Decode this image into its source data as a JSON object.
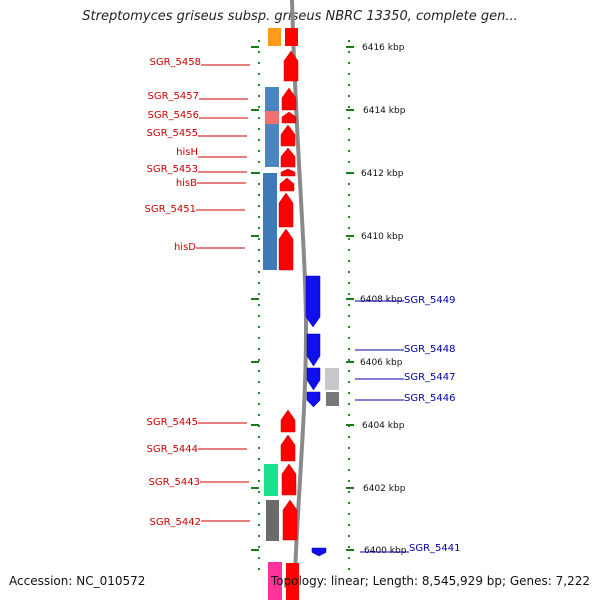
{
  "title": "Streptomyces griseus subsp. griseus NBRC 13350, complete gen...",
  "accession": "Accession: NC_010572",
  "summary": "Topology: linear; Length: 8,545,929 bp; Genes: 7,222",
  "colors": {
    "forward_gene": "#ff0000",
    "reverse_gene": "#1010ee",
    "forward_label": "#cc0000",
    "reverse_label": "#0000aa",
    "backbone": "#8a8a8a",
    "tick": "#008800"
  },
  "kbp_ticks": [
    {
      "label": "6416 kbp"
    },
    {
      "label": "6414 kbp"
    },
    {
      "label": "6412 kbp"
    },
    {
      "label": "6410 kbp"
    },
    {
      "label": "6408 kbp"
    },
    {
      "label": "6406 kbp"
    },
    {
      "label": "6404 kbp"
    },
    {
      "label": "6402 kbp"
    },
    {
      "label": "6400 kbp"
    }
  ],
  "forward_genes": [
    {
      "label": "SGR_5458",
      "color": "#ff0000"
    },
    {
      "label": "SGR_5457",
      "color": "#ff0000"
    },
    {
      "label": "SGR_5456",
      "color": "#ff0000"
    },
    {
      "label": "SGR_5455",
      "color": "#ff0000"
    },
    {
      "label": "hisH",
      "color": "#ff0000"
    },
    {
      "label": "SGR_5453",
      "color": "#ff0000"
    },
    {
      "label": "hisB",
      "color": "#ff0000"
    },
    {
      "label": "SGR_5451",
      "color": "#ff0000"
    },
    {
      "label": "hisD",
      "color": "#ff0000"
    },
    {
      "label": "SGR_5445",
      "color": "#ff0000"
    },
    {
      "label": "SGR_5444",
      "color": "#ff0000"
    },
    {
      "label": "SGR_5443",
      "color": "#ff0000"
    },
    {
      "label": "SGR_5442",
      "color": "#ff0000"
    }
  ],
  "reverse_genes": [
    {
      "label": "SGR_5449",
      "color": "#1010ee"
    },
    {
      "label": "SGR_5448",
      "color": "#1010ee"
    },
    {
      "label": "SGR_5447",
      "color": "#1010ee"
    },
    {
      "label": "SGR_5446",
      "color": "#1010ee"
    },
    {
      "label": "SGR_5441",
      "color": "#1010ee"
    }
  ]
}
